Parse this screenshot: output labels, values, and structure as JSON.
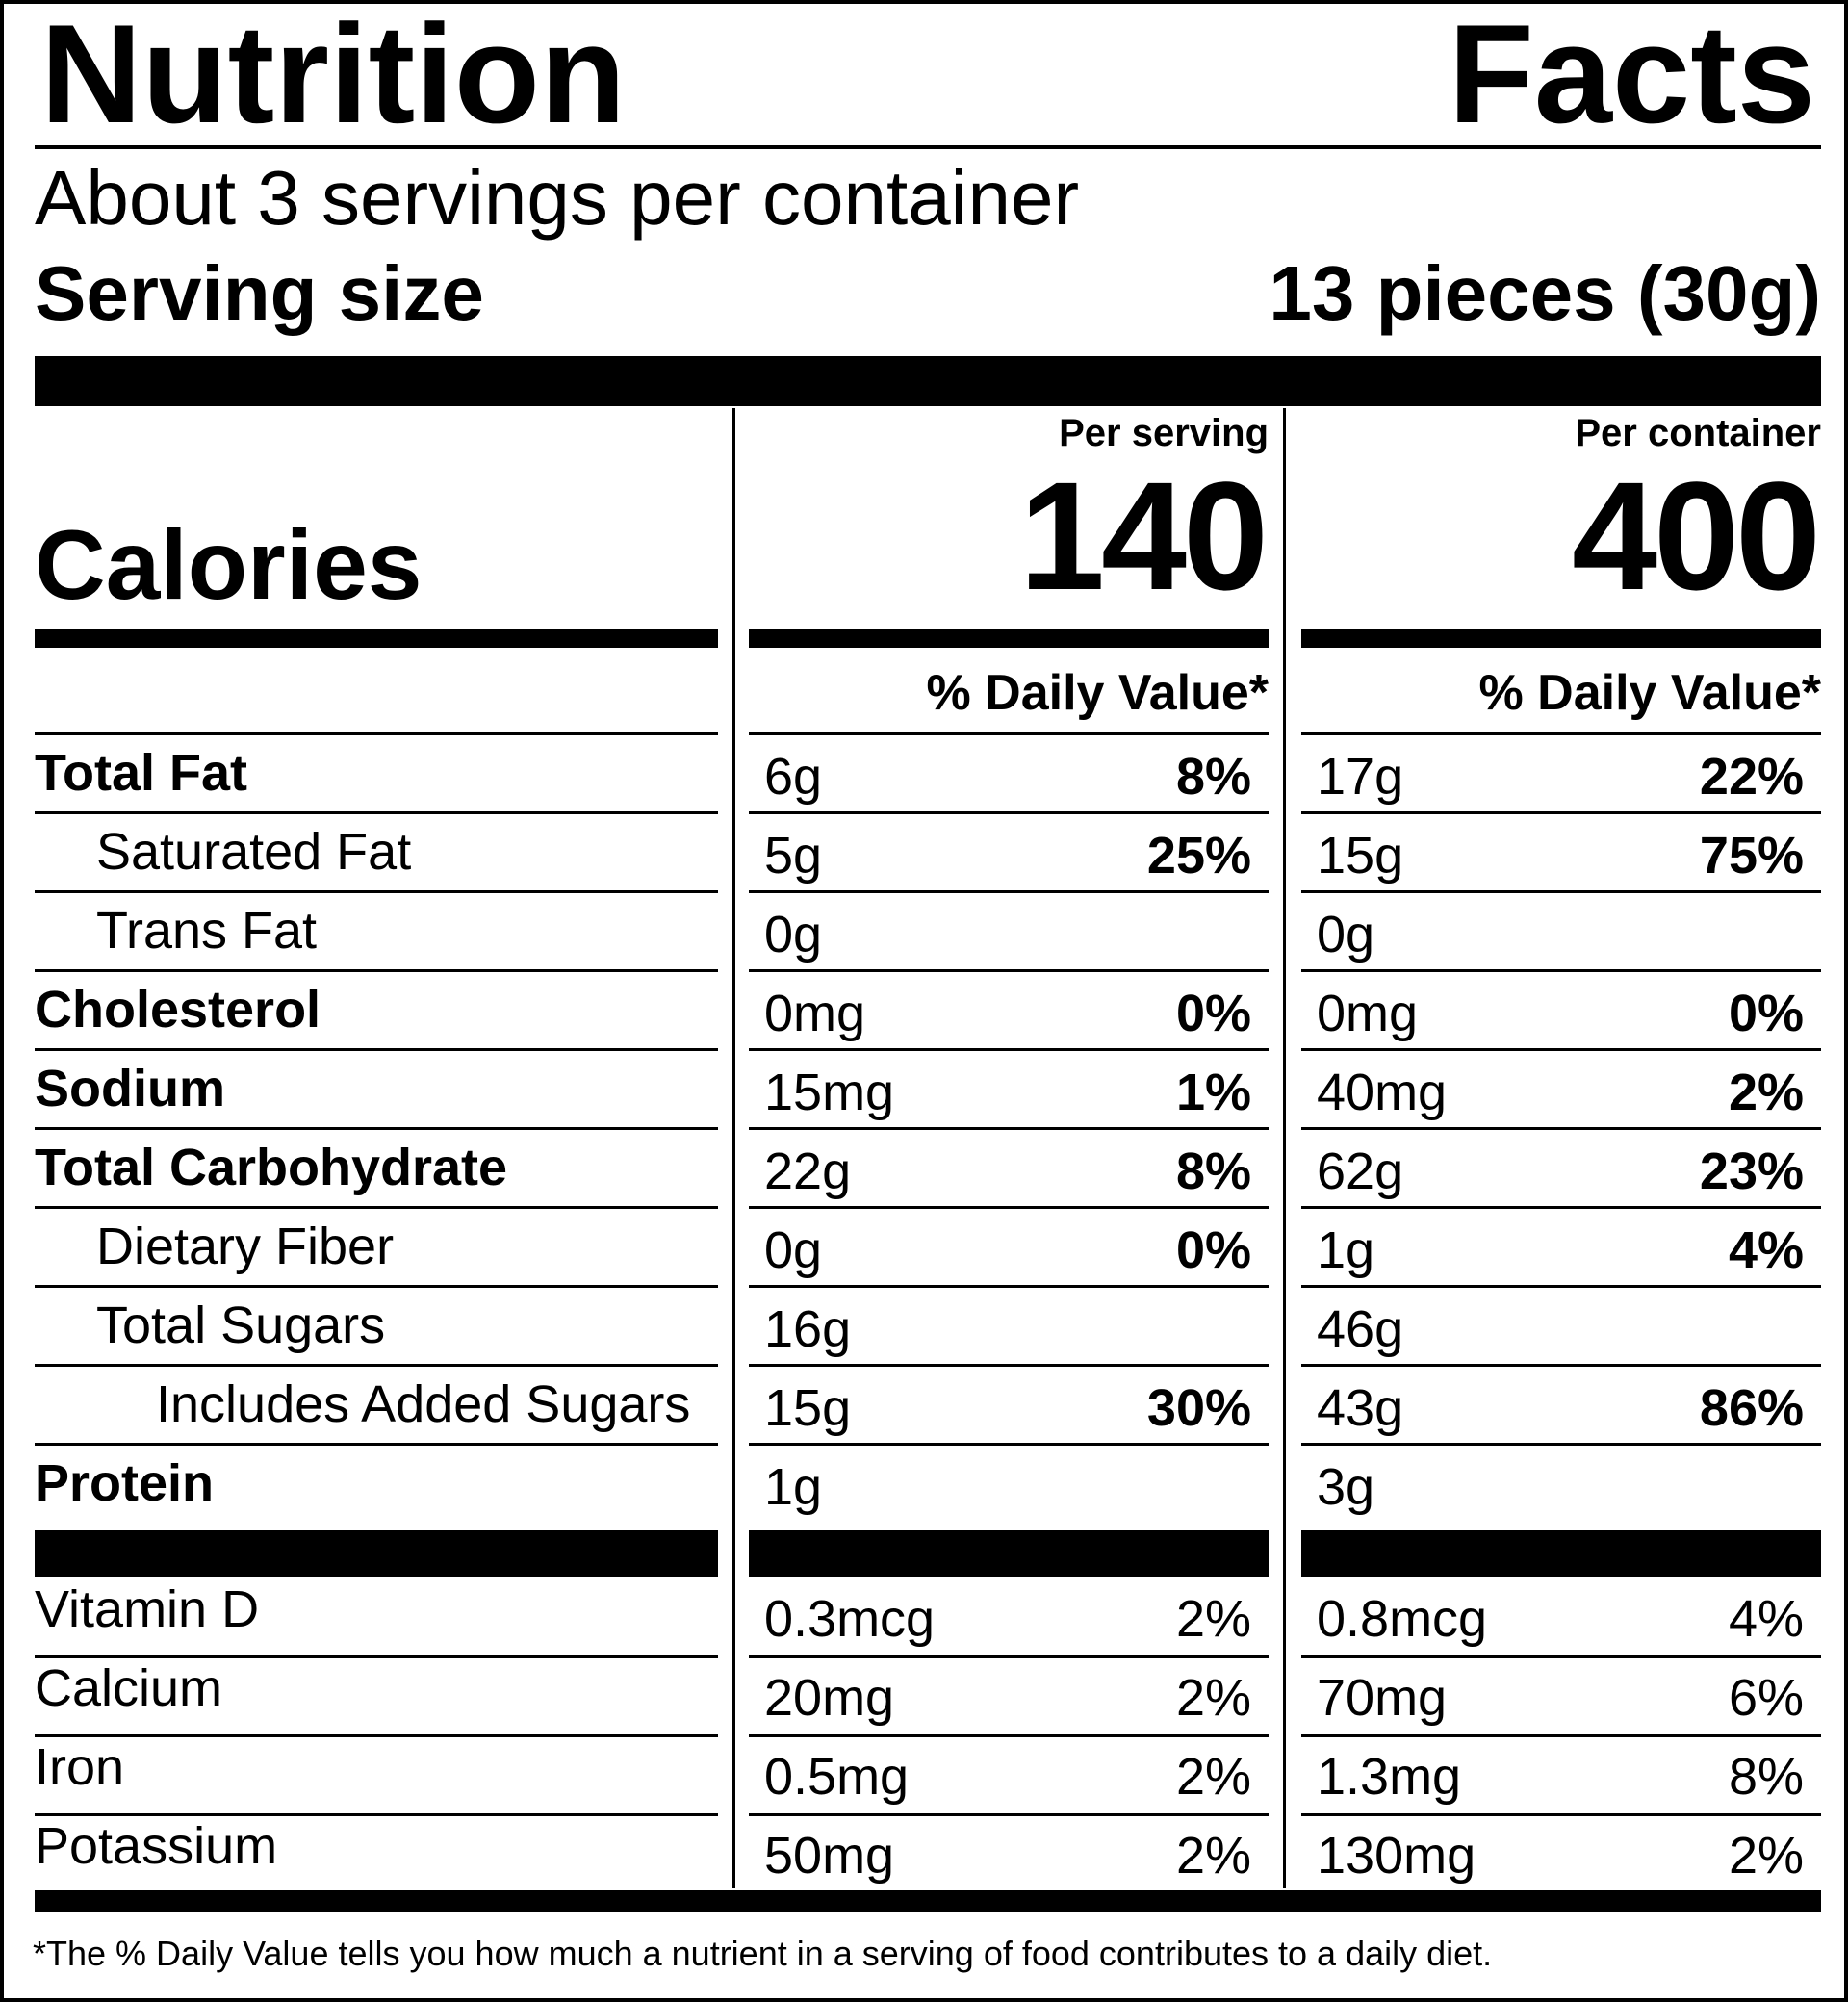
{
  "title": {
    "word1": "Nutrition",
    "word2": "Facts"
  },
  "servings_per_container": "About 3 servings per container",
  "serving_size": {
    "label": "Serving size",
    "value": "13 pieces (30g)"
  },
  "columns": {
    "per_serving": "Per serving",
    "per_container": "Per container"
  },
  "calories": {
    "label": "Calories",
    "per_serving": "140",
    "per_container": "400"
  },
  "daily_value_header": "% Daily Value*",
  "nutrients": [
    {
      "label": "Total Fat",
      "bold": true,
      "indent": 0,
      "serv_amt": "6g",
      "serv_pct": "8%",
      "cont_amt": "17g",
      "cont_pct": "22%"
    },
    {
      "label": "Saturated Fat",
      "bold": false,
      "indent": 1,
      "serv_amt": "5g",
      "serv_pct": "25%",
      "cont_amt": "15g",
      "cont_pct": "75%"
    },
    {
      "label": "Trans Fat",
      "bold": false,
      "indent": 1,
      "serv_amt": "0g",
      "serv_pct": "",
      "cont_amt": "0g",
      "cont_pct": ""
    },
    {
      "label": "Cholesterol",
      "bold": true,
      "indent": 0,
      "serv_amt": "0mg",
      "serv_pct": "0%",
      "cont_amt": "0mg",
      "cont_pct": "0%"
    },
    {
      "label": "Sodium",
      "bold": true,
      "indent": 0,
      "serv_amt": "15mg",
      "serv_pct": "1%",
      "cont_amt": "40mg",
      "cont_pct": "2%"
    },
    {
      "label": "Total Carbohydrate",
      "bold": true,
      "indent": 0,
      "serv_amt": "22g",
      "serv_pct": "8%",
      "cont_amt": "62g",
      "cont_pct": "23%"
    },
    {
      "label": "Dietary Fiber",
      "bold": false,
      "indent": 1,
      "serv_amt": "0g",
      "serv_pct": "0%",
      "cont_amt": "1g",
      "cont_pct": "4%"
    },
    {
      "label": "Total Sugars",
      "bold": false,
      "indent": 1,
      "serv_amt": "16g",
      "serv_pct": "",
      "cont_amt": "46g",
      "cont_pct": ""
    },
    {
      "label": "Includes Added Sugars",
      "bold": false,
      "indent": 2,
      "serv_amt": "15g",
      "serv_pct": "30%",
      "cont_amt": "43g",
      "cont_pct": "86%"
    },
    {
      "label": "Protein",
      "bold": true,
      "indent": 0,
      "serv_amt": "1g",
      "serv_pct": "",
      "cont_amt": "3g",
      "cont_pct": ""
    }
  ],
  "vitamins": [
    {
      "label": "Vitamin D",
      "serv_amt": "0.3mcg",
      "serv_pct": "2%",
      "cont_amt": "0.8mcg",
      "cont_pct": "4%"
    },
    {
      "label": "Calcium",
      "serv_amt": "20mg",
      "serv_pct": "2%",
      "cont_amt": "70mg",
      "cont_pct": "6%"
    },
    {
      "label": "Iron",
      "serv_amt": "0.5mg",
      "serv_pct": "2%",
      "cont_amt": "1.3mg",
      "cont_pct": "8%"
    },
    {
      "label": "Potassium",
      "serv_amt": "50mg",
      "serv_pct": "2%",
      "cont_amt": "130mg",
      "cont_pct": "2%"
    }
  ],
  "footnote": "*The % Daily Value tells you how much a nutrient in a serving of food contributes to a daily diet."
}
